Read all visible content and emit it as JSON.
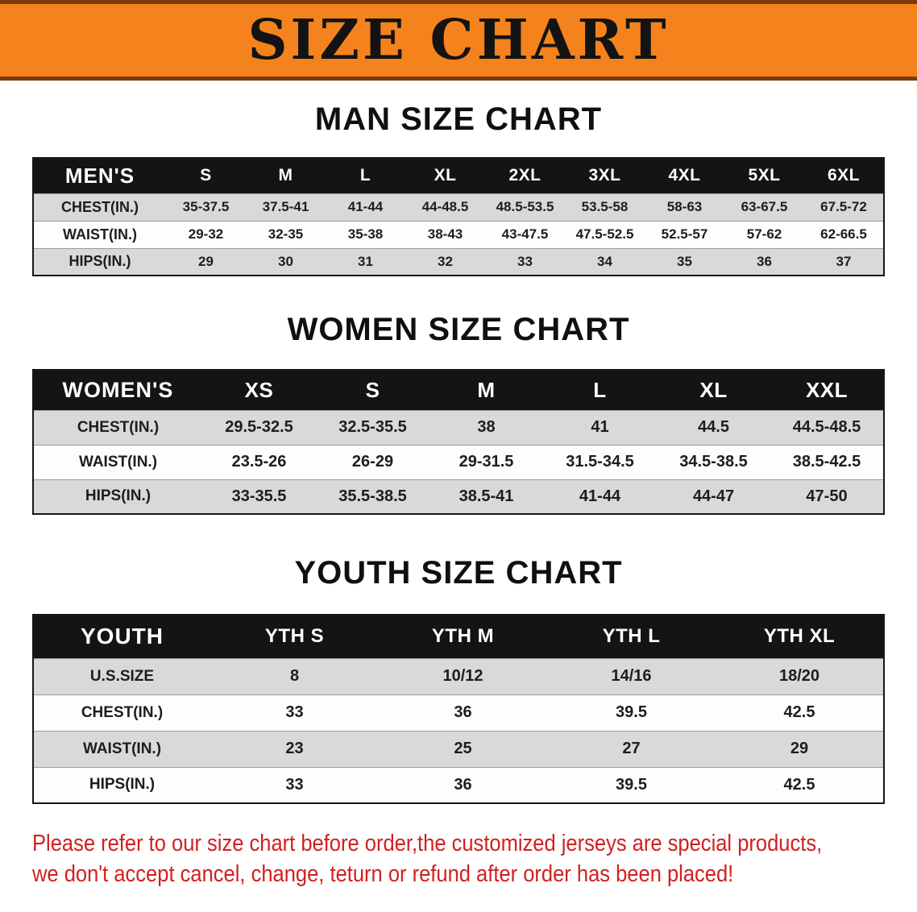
{
  "banner": {
    "title": "SIZE CHART"
  },
  "colors": {
    "banner_bg": "#f4831d",
    "banner_edge": "#7c3a0a",
    "header_bg": "#141414",
    "shade_row": "#d9d9d9",
    "disclaimer_red": "#d21f1f"
  },
  "sections": [
    {
      "heading": "MAN SIZE CHART",
      "table": {
        "label": "MEN'S",
        "columns": [
          "S",
          "M",
          "L",
          "XL",
          "2XL",
          "3XL",
          "4XL",
          "5XL",
          "6XL"
        ],
        "rows": [
          {
            "label": "CHEST(IN.)",
            "values": [
              "35-37.5",
              "37.5-41",
              "41-44",
              "44-48.5",
              "48.5-53.5",
              "53.5-58",
              "58-63",
              "63-67.5",
              "67.5-72"
            ]
          },
          {
            "label": "WAIST(IN.)",
            "values": [
              "29-32",
              "32-35",
              "35-38",
              "38-43",
              "43-47.5",
              "47.5-52.5",
              "52.5-57",
              "57-62",
              "62-66.5"
            ]
          },
          {
            "label": "HIPS(IN.)",
            "values": [
              "29",
              "30",
              "31",
              "32",
              "33",
              "34",
              "35",
              "36",
              "37"
            ]
          }
        ]
      }
    },
    {
      "heading": "WOMEN SIZE CHART",
      "table": {
        "label": "WOMEN'S",
        "columns": [
          "XS",
          "S",
          "M",
          "L",
          "XL",
          "XXL"
        ],
        "rows": [
          {
            "label": "CHEST(IN.)",
            "values": [
              "29.5-32.5",
              "32.5-35.5",
              "38",
              "41",
              "44.5",
              "44.5-48.5"
            ]
          },
          {
            "label": "WAIST(IN.)",
            "values": [
              "23.5-26",
              "26-29",
              "29-31.5",
              "31.5-34.5",
              "34.5-38.5",
              "38.5-42.5"
            ]
          },
          {
            "label": "HIPS(IN.)",
            "values": [
              "33-35.5",
              "35.5-38.5",
              "38.5-41",
              "41-44",
              "44-47",
              "47-50"
            ]
          }
        ]
      }
    },
    {
      "heading": "YOUTH SIZE CHART",
      "table": {
        "label": "YOUTH",
        "columns": [
          "YTH S",
          "YTH M",
          "YTH L",
          "YTH XL"
        ],
        "rows": [
          {
            "label": "U.S.SIZE",
            "values": [
              "8",
              "10/12",
              "14/16",
              "18/20"
            ]
          },
          {
            "label": "CHEST(IN.)",
            "values": [
              "33",
              "36",
              "39.5",
              "42.5"
            ]
          },
          {
            "label": "WAIST(IN.)",
            "values": [
              "23",
              "25",
              "27",
              "29"
            ]
          },
          {
            "label": "HIPS(IN.)",
            "values": [
              "33",
              "36",
              "39.5",
              "42.5"
            ]
          }
        ]
      }
    }
  ],
  "disclaimer": {
    "line1": "Please refer to our size chart before order,the customized jerseys are special products,",
    "line2": "we don't accept cancel, change, teturn or refund after order has been placed!"
  }
}
